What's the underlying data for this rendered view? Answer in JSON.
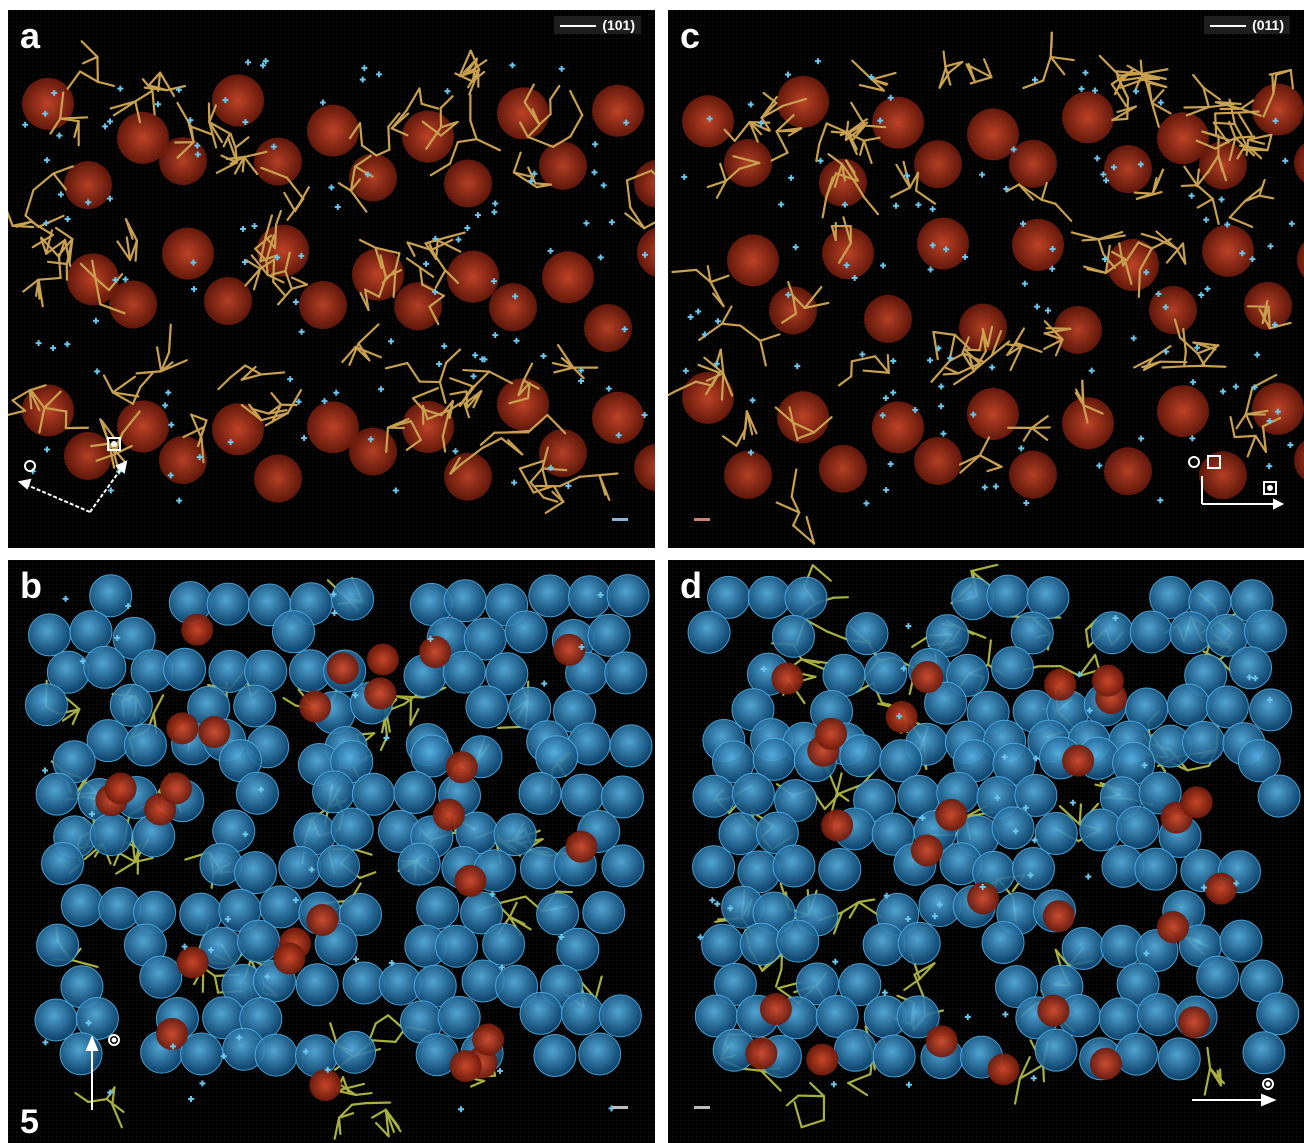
{
  "figure": {
    "number": "5"
  },
  "panels": {
    "a": {
      "letter": "a",
      "plane": "(101)",
      "view": "stick model with red spheres and blue crosses"
    },
    "b": {
      "letter": "b",
      "view": "space-filling blue spheres with red spheres and green sticks"
    },
    "c": {
      "letter": "c",
      "plane": "(011)",
      "view": "stick model with red spheres and blue crosses"
    },
    "d": {
      "letter": "d",
      "view": "space-filling blue spheres with red spheres and green sticks"
    }
  },
  "colors": {
    "background": "#000000",
    "stick_top": "#c9a050",
    "stick_bottom": "#a8b040",
    "red_sphere": "#b8361c",
    "blue_sphere": "#2e8fd0",
    "cross": "#6cc6ec"
  },
  "icons": {
    "axes_a": "crystal-axes-icon",
    "axes_b": "crystal-axes-icon",
    "axes_c": "crystal-axes-icon",
    "axes_d": "crystal-axes-icon"
  }
}
